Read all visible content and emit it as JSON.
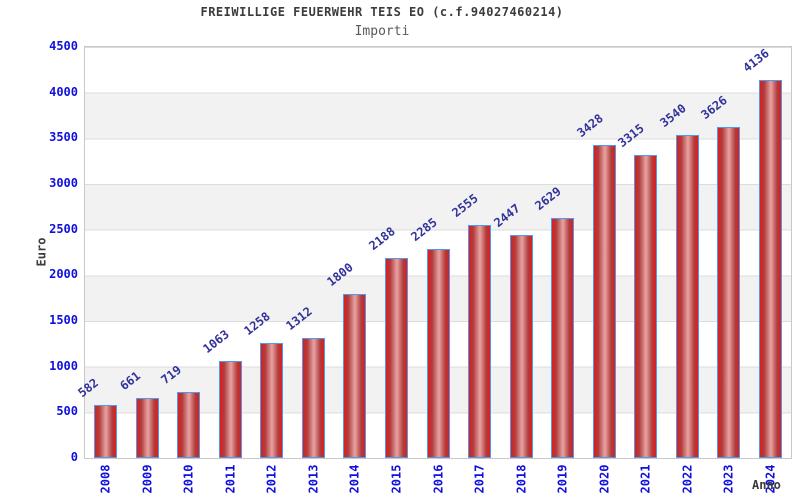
{
  "header": {
    "title": "FREIWILLIGE FEUERWEHR TEIS EO (c.f.94027460214)",
    "subtitle": "Importi"
  },
  "chart_data": {
    "type": "bar",
    "title": "FREIWILLIGE FEUERWEHR TEIS EO (c.f.94027460214)",
    "subtitle": "Importi",
    "categories": [
      "2008",
      "2009",
      "2010",
      "2011",
      "2012",
      "2013",
      "2014",
      "2015",
      "2016",
      "2017",
      "2018",
      "2019",
      "2020",
      "2021",
      "2022",
      "2023",
      "2024"
    ],
    "values": [
      582,
      661,
      719,
      1063,
      1258,
      1312,
      1800,
      2188,
      2285,
      2555,
      2447,
      2629,
      3428,
      3315,
      3540,
      3626,
      4136
    ],
    "xlabel": "Anno",
    "ylabel": "Euro",
    "ylim": [
      0,
      4500
    ],
    "ytick_step": 500,
    "yticks": [
      0,
      500,
      1000,
      1500,
      2000,
      2500,
      3000,
      3500,
      4000,
      4500
    ],
    "grid": "horizontal-bands",
    "legend": null,
    "value_labels_rotated": true,
    "colors": {
      "tick_label": "#1010dd",
      "value_label": "#32329b",
      "title_color": "#3c3c3c",
      "subtitle_color": "#5a5a5a",
      "axis_title": "#3c3c3c",
      "band_gray": "#f2f2f2",
      "band_white": "#ffffff",
      "gridline": "#dcdcdc",
      "plot_border": "#c8c8c8",
      "bar_border": "#4a9cf0",
      "bar_gradient": [
        {
          "color": "#e31b1b",
          "pos": "0%"
        },
        {
          "color": "#ae3e3e",
          "pos": "20%"
        },
        {
          "color": "#eaa2a2",
          "pos": "52%"
        },
        {
          "color": "#ae3e3e",
          "pos": "82%"
        },
        {
          "color": "#e31b1b",
          "pos": "100%"
        }
      ]
    }
  }
}
